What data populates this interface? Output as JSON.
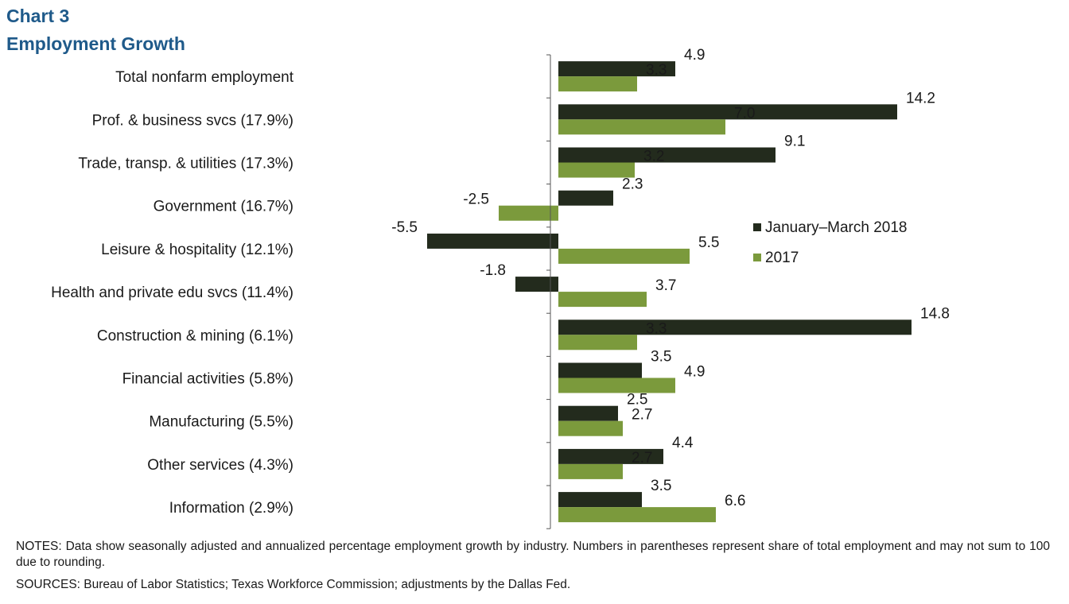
{
  "heading": {
    "chart_number": "Chart 3",
    "subtitle": "Employment  Growth"
  },
  "colors": {
    "series_2018": "#232b1d",
    "series_2017": "#7b9a3c",
    "title": "#1f5a8a"
  },
  "notes": "NOTES: Data show seasonally adjusted and annualized percentage employment growth by industry. Numbers in parentheses represent share of total employment and may not sum to 100 due to rounding.",
  "sources": "SOURCES: Bureau of Labor Statistics; Texas Workforce Commission; adjustments by the Dallas Fed.",
  "chart_data": {
    "type": "bar",
    "orientation": "horizontal",
    "title": "Employment  Growth",
    "xlabel": "",
    "ylabel": "",
    "xlim": [
      -6,
      15
    ],
    "grid": false,
    "legend_position": "right-center",
    "categories": [
      "Total nonfarm employment",
      "Prof. & business svcs (17.9%)",
      "Trade, transp. & utilities (17.3%)",
      "Government (16.7%)",
      "Leisure & hospitality (12.1%)",
      "Health and private edu svcs (11.4%)",
      "Construction & mining (6.1%)",
      "Financial activities (5.8%)",
      "Manufacturing (5.5%)",
      "Other services (4.3%)",
      "Information (2.9%)"
    ],
    "series": [
      {
        "name": "January–March 2018",
        "color": "#232b1d",
        "values": [
          4.9,
          14.2,
          9.1,
          2.3,
          -5.5,
          -1.8,
          14.8,
          3.5,
          2.5,
          4.4,
          3.5
        ],
        "labels": [
          "4.9",
          "14.2",
          "9.1",
          "2.3",
          "-5.5",
          "-1.8",
          "14.8",
          "3.5",
          "2.5",
          "4.4",
          "3.5"
        ]
      },
      {
        "name": "2017",
        "color": "#7b9a3c",
        "values": [
          3.3,
          7.0,
          3.2,
          -2.5,
          5.5,
          3.7,
          3.3,
          4.9,
          2.7,
          2.7,
          6.6
        ],
        "labels": [
          "3.3",
          "7.0",
          "3.2",
          "-2.5",
          "5.5",
          "3.7",
          "3.3",
          "4.9",
          "2.7",
          "2.7",
          "6.6"
        ]
      }
    ]
  }
}
